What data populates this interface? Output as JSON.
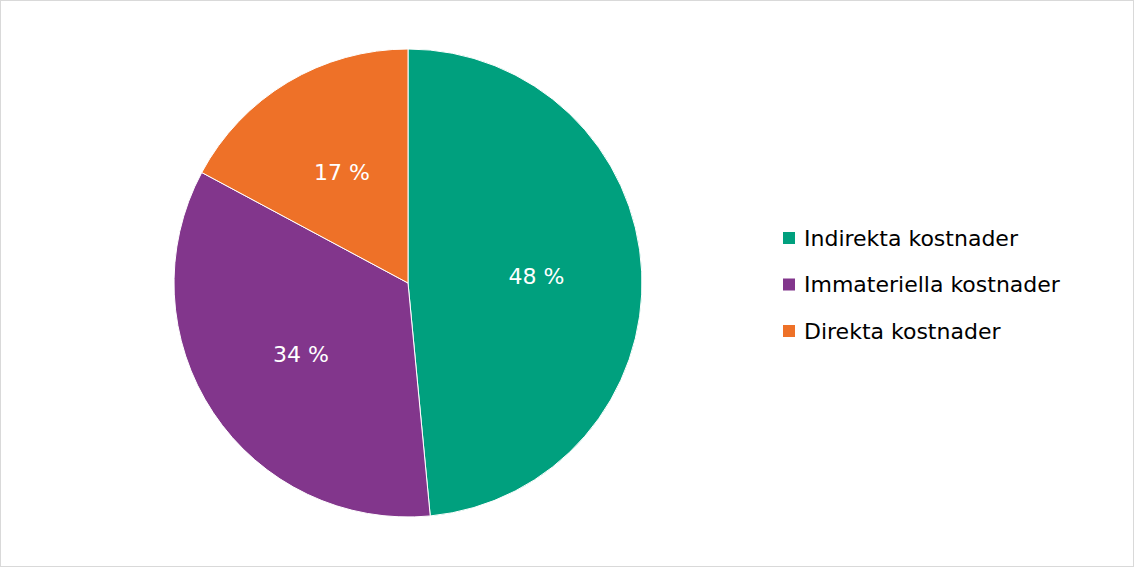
{
  "chart_data": {
    "type": "pie",
    "categories": [
      "Indirekta kostnader",
      "Immateriella kostnader",
      "Direkta kostnader"
    ],
    "values": [
      48,
      34,
      17
    ],
    "value_labels": [
      "48 %",
      "34 %",
      "17 %"
    ],
    "colors": [
      "#00a07e",
      "#82368c",
      "#ee7128"
    ],
    "data_labels": true,
    "legend": "right"
  }
}
